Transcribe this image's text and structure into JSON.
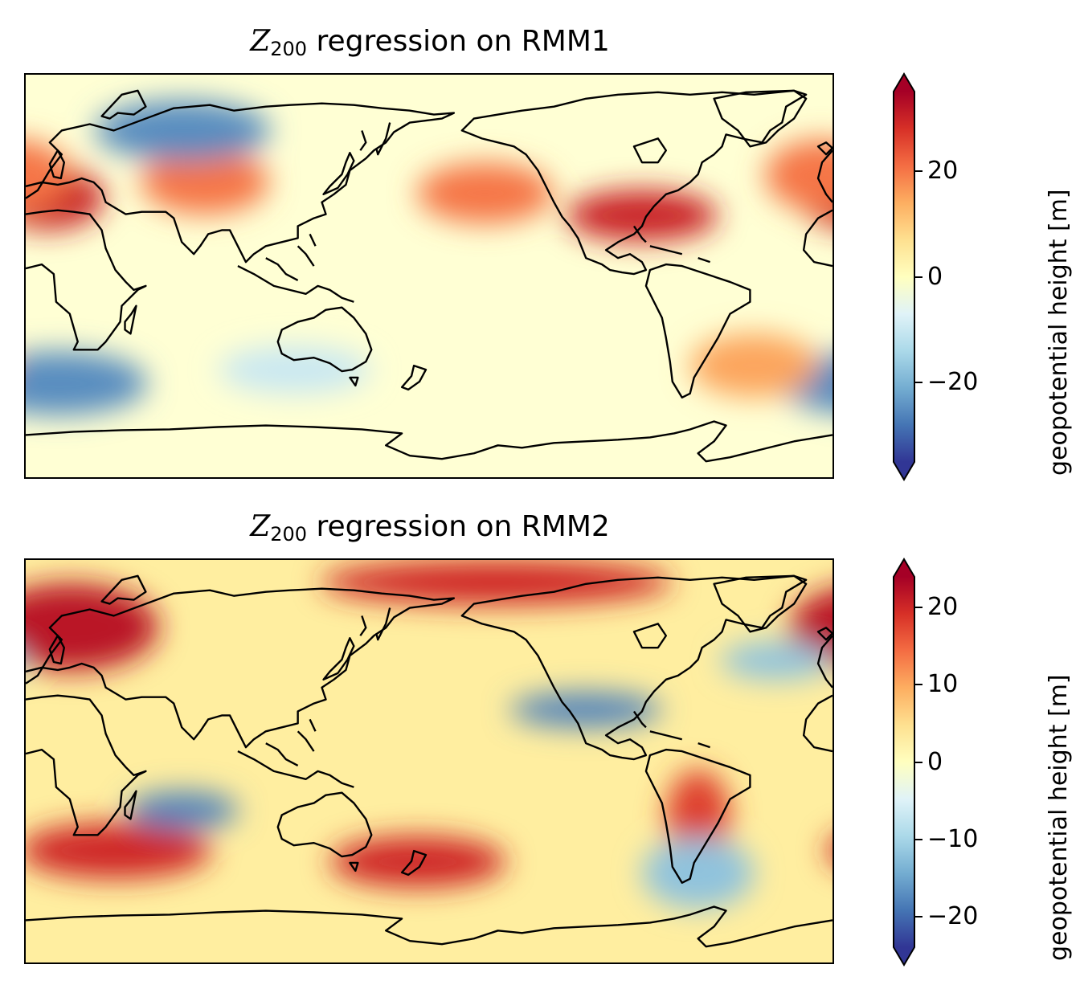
{
  "colormap": [
    "#313695",
    "#4575b4",
    "#74add1",
    "#abd9e9",
    "#e0f3f8",
    "#ffffbf",
    "#fee090",
    "#fdae61",
    "#f46d43",
    "#d73027",
    "#a50026"
  ],
  "coast_color": "#000000",
  "panels": [
    {
      "title_var": "Z",
      "title_sub": "200",
      "title_text": " regression on RMM1",
      "colorbar_label": "geopotential height [m]",
      "vmin": -35,
      "vmax": 35,
      "ticks": [
        {
          "value": 20,
          "label": "20"
        },
        {
          "value": 0,
          "label": "0"
        },
        {
          "value": -20,
          "label": "−20"
        }
      ]
    },
    {
      "title_var": "Z",
      "title_sub": "200",
      "title_text": " regression on RMM2",
      "colorbar_label": "geopotential height [m]",
      "vmin": -24,
      "vmax": 24,
      "ticks": [
        {
          "value": 20,
          "label": "20"
        },
        {
          "value": 10,
          "label": "10"
        },
        {
          "value": 0,
          "label": "0"
        },
        {
          "value": -10,
          "label": "−10"
        },
        {
          "value": -20,
          "label": "−20"
        }
      ]
    }
  ],
  "chart_data": [
    {
      "type": "heatmap",
      "title": "Z200 regression on RMM1",
      "colorbar_label": "geopotential height [m]",
      "colorbar_ticks": [
        -20,
        0,
        20
      ],
      "colorbar_extend": "both",
      "colormap": "RdYlBu_r",
      "coastlines": true,
      "central_longitude": 180,
      "features": [
        {
          "region": "Mediterranean / N Africa",
          "lon": 10,
          "lat": 35,
          "value": 30
        },
        {
          "region": "Gulf of Mexico / SE USA",
          "lon": -85,
          "lat": 27,
          "value": 30
        },
        {
          "region": "NE Atlantic / W Europe",
          "lon": -5,
          "lat": 45,
          "value": 20
        },
        {
          "region": "North Pacific",
          "lon": -155,
          "lat": 37,
          "value": 20
        },
        {
          "region": "Central Asia",
          "lon": 80,
          "lat": 42,
          "value": 20
        },
        {
          "region": "Siberia",
          "lon": 70,
          "lat": 65,
          "value": -25
        },
        {
          "region": "Southern Indian Ocean",
          "lon": 15,
          "lat": -48,
          "value": -25
        },
        {
          "region": "South of Australia",
          "lon": 120,
          "lat": -42,
          "value": -10
        },
        {
          "region": "South Atlantic",
          "lon": -35,
          "lat": -40,
          "value": 15
        }
      ]
    },
    {
      "type": "heatmap",
      "title": "Z200 regression on RMM2",
      "colorbar_label": "geopotential height [m]",
      "colorbar_ticks": [
        -20,
        -10,
        0,
        10,
        20
      ],
      "colorbar_extend": "both",
      "colormap": "RdYlBu_r",
      "coastlines": true,
      "central_longitude": 180,
      "features": [
        {
          "region": "Northern Europe",
          "lon": 20,
          "lat": 60,
          "value": 22
        },
        {
          "region": "Arctic",
          "lon": -150,
          "lat": 80,
          "value": 20
        },
        {
          "region": "South Indian Ocean",
          "lon": 40,
          "lat": -40,
          "value": 20
        },
        {
          "region": "South of New Zealand",
          "lon": 175,
          "lat": -45,
          "value": 20
        },
        {
          "region": "South America east",
          "lon": -60,
          "lat": -25,
          "value": 18
        },
        {
          "region": "Subtropical Pacific",
          "lon": -110,
          "lat": 23,
          "value": -18
        },
        {
          "region": "Southern Indian Ocean",
          "lon": 70,
          "lat": -22,
          "value": -18
        },
        {
          "region": "Southeast Pacific",
          "lon": -60,
          "lat": -50,
          "value": -12
        },
        {
          "region": "North Atlantic",
          "lon": -25,
          "lat": 45,
          "value": -12
        }
      ]
    }
  ]
}
